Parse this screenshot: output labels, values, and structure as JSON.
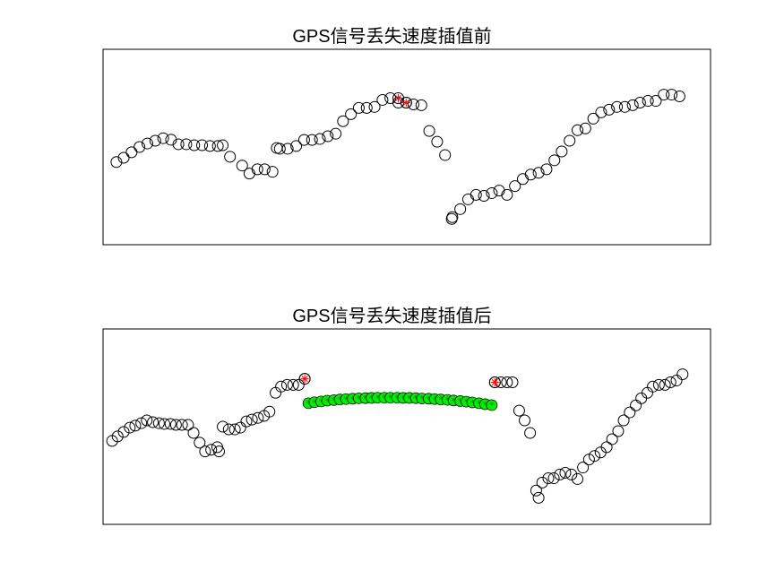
{
  "chart_data": [
    {
      "type": "scatter",
      "title": "GPS信号丢失速度插值前",
      "xlabel": "",
      "ylabel": "",
      "axes_visible": false,
      "box": true,
      "xlim": [
        0,
        100
      ],
      "ylim": [
        0,
        100
      ],
      "marker_colors": {
        "original": "#000000",
        "marked": "#ff0000"
      },
      "series": [
        {
          "marker": "open-circle",
          "color": "#000000",
          "x": [
            2.2,
            3.4,
            4.7,
            6.0,
            7.3,
            8.6,
            9.9,
            11.2,
            12.4,
            13.7,
            15.0,
            16.3,
            17.6,
            18.9,
            19.7,
            20.9,
            22.9,
            24.1,
            25.4,
            26.6,
            27.9,
            28.6,
            29.1,
            30.4,
            31.8,
            33.1,
            34.4,
            35.7,
            37.0,
            38.3,
            39.5,
            40.8,
            42.1,
            43.4,
            44.7,
            46.0,
            47.3,
            48.6,
            49.9,
            51.1,
            52.4,
            53.7,
            55.0,
            56.3,
            57.4,
            57.5,
            58.8,
            60.1,
            61.4,
            62.7,
            64.0,
            65.2,
            66.5,
            67.8,
            69.1,
            70.4,
            71.7,
            73.0,
            74.3,
            75.5,
            76.8,
            78.1,
            79.4,
            80.7,
            82.0,
            83.3,
            84.6,
            85.9,
            87.2,
            88.4,
            89.7,
            91.0,
            92.3,
            93.6,
            94.9
          ],
          "y": [
            42.3,
            44.5,
            47.3,
            50.0,
            51.8,
            53.2,
            54.5,
            53.7,
            51.4,
            51.4,
            50.9,
            50.9,
            50.5,
            50.5,
            50.9,
            45.0,
            40.5,
            36.4,
            38.6,
            38.6,
            37.3,
            49.5,
            49.1,
            49.1,
            50.5,
            53.6,
            53.6,
            54.1,
            55.5,
            56.8,
            63.2,
            66.8,
            70.0,
            70.0,
            70.5,
            74.1,
            75.0,
            72.7,
            72.7,
            71.8,
            71.4,
            58.2,
            52.7,
            45.9,
            13.2,
            14.1,
            18.2,
            23.2,
            25.5,
            25.0,
            26.4,
            27.7,
            25.5,
            30.0,
            33.6,
            35.9,
            36.8,
            38.6,
            43.2,
            47.7,
            53.2,
            58.6,
            59.5,
            64.5,
            67.7,
            69.1,
            70.5,
            70.5,
            71.4,
            72.7,
            73.6,
            73.6,
            76.8,
            76.8,
            75.9
          ]
        },
        {
          "marker": "circle-star",
          "color": "#ff0000",
          "x": [
            48.6,
            49.9
          ],
          "y": [
            75.0,
            72.7
          ]
        }
      ]
    },
    {
      "type": "scatter",
      "title": "GPS信号丢失速度插值后",
      "xlabel": "",
      "ylabel": "",
      "axes_visible": false,
      "box": true,
      "xlim": [
        0,
        100
      ],
      "ylim": [
        0,
        100
      ],
      "marker_colors": {
        "original": "#000000",
        "marked": "#ff0000",
        "interpolated": "#00ee00"
      },
      "series": [
        {
          "marker": "open-circle",
          "color": "#000000",
          "x": [
            1.5,
            2.4,
            3.4,
            4.4,
            5.3,
            6.3,
            7.2,
            8.2,
            9.2,
            10.1,
            11.1,
            12.0,
            13.0,
            14.0,
            14.9,
            15.9,
            16.8,
            17.8,
            18.8,
            19.1,
            19.7,
            20.7,
            21.7,
            22.6,
            23.6,
            24.5,
            25.5,
            26.5,
            27.4,
            28.4,
            29.3,
            30.3,
            31.3,
            32.2,
            33.2,
            64.5,
            65.5,
            66.5,
            67.4,
            68.5,
            69.4,
            70.3,
            71.3,
            71.7,
            72.3,
            73.3,
            74.2,
            75.2,
            76.1,
            77.1,
            78.1,
            79.0,
            80.0,
            80.9,
            81.9,
            82.9,
            83.8,
            84.8,
            85.7,
            86.7,
            87.7,
            88.6,
            89.6,
            90.5,
            91.5,
            92.5,
            93.4,
            94.4,
            95.4
          ],
          "y": [
            42.7,
            45.0,
            47.3,
            49.5,
            50.5,
            51.8,
            53.2,
            52.3,
            51.8,
            51.4,
            51.4,
            50.9,
            50.9,
            50.9,
            46.8,
            41.8,
            37.3,
            38.2,
            39.5,
            37.3,
            50.0,
            48.6,
            48.6,
            49.5,
            52.7,
            53.6,
            54.5,
            55.5,
            57.7,
            67.3,
            70.5,
            71.4,
            71.4,
            71.4,
            74.5,
            72.7,
            72.7,
            72.7,
            72.7,
            58.2,
            53.2,
            46.8,
            17.3,
            13.6,
            21.4,
            23.6,
            23.6,
            25.5,
            26.4,
            25.5,
            23.2,
            29.1,
            33.2,
            35.0,
            36.8,
            39.5,
            43.6,
            47.7,
            53.2,
            57.3,
            60.9,
            64.5,
            67.3,
            70.5,
            71.4,
            71.4,
            72.7,
            73.6,
            76.8
          ]
        },
        {
          "marker": "circle-star",
          "color": "#ff0000",
          "x": [
            33.2,
            64.5
          ],
          "y": [
            74.5,
            72.7
          ]
        },
        {
          "marker": "circle-filled",
          "color": "#00ee00",
          "x": [
            33.8,
            34.8,
            35.9,
            36.9,
            38.0,
            39.0,
            40.0,
            41.1,
            42.1,
            43.2,
            44.2,
            45.2,
            46.3,
            47.3,
            48.4,
            49.4,
            50.4,
            51.5,
            52.5,
            53.6,
            54.6,
            55.6,
            56.7,
            57.7,
            58.8,
            59.8,
            60.8,
            61.9,
            62.9,
            64.0
          ],
          "y": [
            62.0,
            62.5,
            62.9,
            63.3,
            63.6,
            63.9,
            64.1,
            64.3,
            64.5,
            64.6,
            64.7,
            64.8,
            64.8,
            64.8,
            64.8,
            64.7,
            64.7,
            64.6,
            64.4,
            64.3,
            64.1,
            63.9,
            63.7,
            63.4,
            63.1,
            62.8,
            62.4,
            62.0,
            61.5,
            61.0
          ]
        }
      ]
    }
  ]
}
